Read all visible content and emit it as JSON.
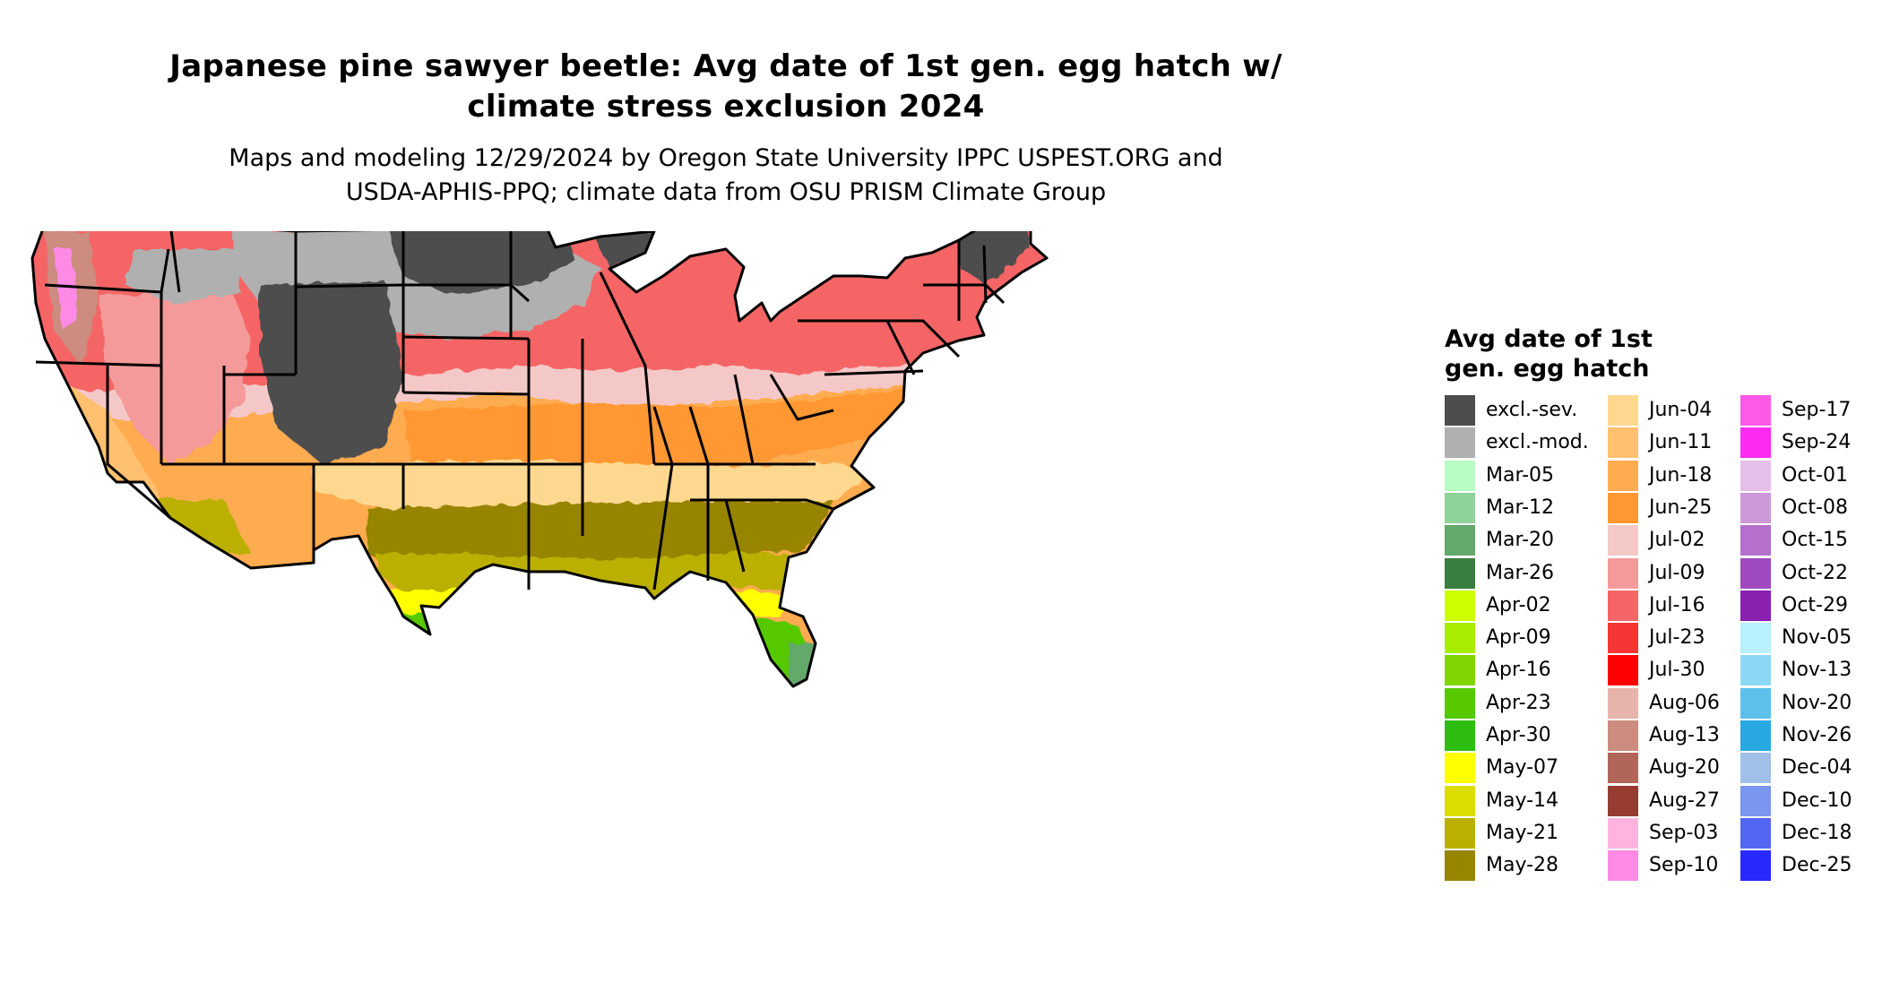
{
  "title": "Japanese pine sawyer beetle: Avg date of 1st gen. egg hatch w/ climate stress exclusion 2024",
  "title_lines": [
    "Japanese pine sawyer beetle: Avg date of 1st gen. egg hatch w/",
    "climate stress exclusion 2024"
  ],
  "subtitle_lines": [
    "Maps and modeling 12/29/2024 by Oregon State University IPPC USPEST.ORG and",
    "USDA-APHIS-PPQ; climate data from OSU PRISM Climate Group"
  ],
  "legend": {
    "title_lines": [
      "Avg date of 1st",
      "gen. egg hatch"
    ],
    "columns": [
      [
        {
          "label": "excl.-sev.",
          "color": "#4d4d4d"
        },
        {
          "label": "excl.-mod.",
          "color": "#b0b0b0"
        },
        {
          "label": "Mar-05",
          "color": "#b8fcc4"
        },
        {
          "label": "Mar-12",
          "color": "#8fd39a"
        },
        {
          "label": "Mar-20",
          "color": "#63a96b"
        },
        {
          "label": "Mar-26",
          "color": "#3a7d40"
        },
        {
          "label": "Apr-02",
          "color": "#ccff00"
        },
        {
          "label": "Apr-09",
          "color": "#a8ec00"
        },
        {
          "label": "Apr-16",
          "color": "#80d600"
        },
        {
          "label": "Apr-23",
          "color": "#55c800"
        },
        {
          "label": "Apr-30",
          "color": "#2dbd10"
        },
        {
          "label": "May-07",
          "color": "#ffff00"
        },
        {
          "label": "May-14",
          "color": "#dddd00"
        },
        {
          "label": "May-21",
          "color": "#bbb000"
        },
        {
          "label": "May-28",
          "color": "#978500"
        }
      ],
      [
        {
          "label": "Jun-04",
          "color": "#ffd890"
        },
        {
          "label": "Jun-11",
          "color": "#ffc070"
        },
        {
          "label": "Jun-18",
          "color": "#ffab50"
        },
        {
          "label": "Jun-25",
          "color": "#ff9830"
        },
        {
          "label": "Jul-02",
          "color": "#f5c8c8"
        },
        {
          "label": "Jul-09",
          "color": "#f49a9a"
        },
        {
          "label": "Jul-16",
          "color": "#f56565"
        },
        {
          "label": "Jul-23",
          "color": "#f53535"
        },
        {
          "label": "Jul-30",
          "color": "#ff0000"
        },
        {
          "label": "Aug-06",
          "color": "#e6b4aa"
        },
        {
          "label": "Aug-13",
          "color": "#cc8c80"
        },
        {
          "label": "Aug-20",
          "color": "#b06658"
        },
        {
          "label": "Aug-27",
          "color": "#963c30"
        },
        {
          "label": "Sep-03",
          "color": "#ffb4e0"
        },
        {
          "label": "Sep-10",
          "color": "#ff8ae6"
        }
      ],
      [
        {
          "label": "Sep-17",
          "color": "#ff5ae6"
        },
        {
          "label": "Sep-24",
          "color": "#ff2af0"
        },
        {
          "label": "Oct-01",
          "color": "#e4c0e8"
        },
        {
          "label": "Oct-08",
          "color": "#cc98d8"
        },
        {
          "label": "Oct-15",
          "color": "#b470cc"
        },
        {
          "label": "Oct-22",
          "color": "#a04ac0"
        },
        {
          "label": "Oct-29",
          "color": "#8a20b0"
        },
        {
          "label": "Nov-05",
          "color": "#b8f0ff"
        },
        {
          "label": "Nov-13",
          "color": "#8cd8f4"
        },
        {
          "label": "Nov-20",
          "color": "#5cc0ea"
        },
        {
          "label": "Nov-26",
          "color": "#28a8e0"
        },
        {
          "label": "Dec-04",
          "color": "#a0c0e8"
        },
        {
          "label": "Dec-10",
          "color": "#7a96ee"
        },
        {
          "label": "Dec-18",
          "color": "#5266f4"
        },
        {
          "label": "Dec-25",
          "color": "#2828ff"
        }
      ]
    ]
  }
}
